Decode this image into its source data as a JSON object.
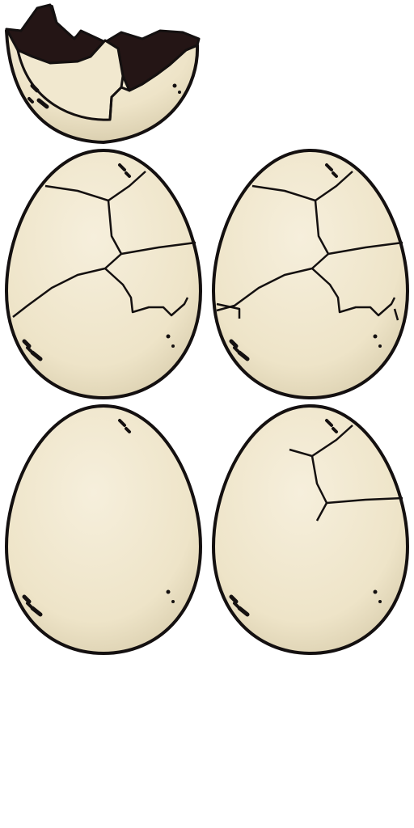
{
  "sheet": {
    "background": "#ffffff",
    "egg_fill": "#f3ead3",
    "egg_shade": "#d6cbac",
    "outline": "#141010",
    "inside": "#241515"
  },
  "sprites": [
    {
      "name": "broken-top-shell",
      "stage": "hatched-top-shell"
    },
    {
      "name": "egg-heavy-crack-a",
      "stage": "heavily-cracked"
    },
    {
      "name": "egg-heavy-crack-b",
      "stage": "heavily-cracked"
    },
    {
      "name": "egg-intact",
      "stage": "intact"
    },
    {
      "name": "egg-light-crack",
      "stage": "lightly-cracked"
    }
  ]
}
